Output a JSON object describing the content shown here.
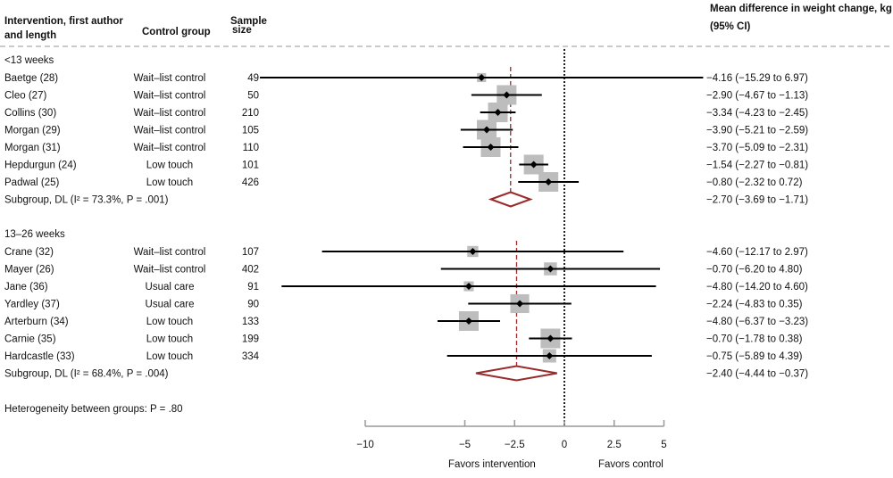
{
  "headers": {
    "study_line1": "Intervention, first author",
    "study_line2": "and length",
    "control": "Control group",
    "sample_line1": "Sample",
    "sample_line2": "size",
    "effect_line1": "Mean difference in weight change, kg",
    "effect_line2": "(95% CI)"
  },
  "chart_data": {
    "type": "forest",
    "xlim": [
      -10,
      5
    ],
    "xticks": [
      "-10",
      "-5",
      "-2.5",
      "0",
      "2.5",
      "5"
    ],
    "xtick_values": [
      -10,
      -5,
      -2.5,
      0,
      2.5,
      5
    ],
    "xlabel_left": "Favors intervention",
    "xlabel_right": "Favors control",
    "colors": {
      "summary": "#9b2a2a",
      "box": "#bdbdbd",
      "line": "#000000"
    },
    "groups": [
      {
        "label": "<13 weeks",
        "studies": [
          {
            "name": "Baetge (28)",
            "control": "Wait–list control",
            "n": "49",
            "mean": -4.16,
            "lo": -15.29,
            "hi": 6.97,
            "ci_text": "−4.16 (−15.29 to 6.97)"
          },
          {
            "name": "Cleo (27)",
            "control": "Wait–list control",
            "n": "50",
            "mean": -2.9,
            "lo": -4.67,
            "hi": -1.13,
            "ci_text": "−2.90 (−4.67 to −1.13)"
          },
          {
            "name": "Collins (30)",
            "control": "Wait–list control",
            "n": "210",
            "mean": -3.34,
            "lo": -4.23,
            "hi": -2.45,
            "ci_text": "−3.34 (−4.23 to −2.45)"
          },
          {
            "name": "Morgan (29)",
            "control": "Wait–list control",
            "n": "105",
            "mean": -3.9,
            "lo": -5.21,
            "hi": -2.59,
            "ci_text": "−3.90 (−5.21 to −2.59)"
          },
          {
            "name": "Morgan (31)",
            "control": "Wait–list control",
            "n": "110",
            "mean": -3.7,
            "lo": -5.09,
            "hi": -2.31,
            "ci_text": "−3.70 (−5.09 to −2.31)"
          },
          {
            "name": "Hepdurgun (24)",
            "control": "Low touch",
            "n": "101",
            "mean": -1.54,
            "lo": -2.27,
            "hi": -0.81,
            "ci_text": "−1.54 (−2.27 to −0.81)"
          },
          {
            "name": "Padwal (25)",
            "control": "Low touch",
            "n": "426",
            "mean": -0.8,
            "lo": -2.32,
            "hi": 0.72,
            "ci_text": "−0.80 (−2.32 to 0.72)"
          }
        ],
        "summary": {
          "label": "Subgroup, DL (I² = 73.3%, P = .001)",
          "mean": -2.7,
          "lo": -3.69,
          "hi": -1.71,
          "ci_text": "−2.70 (−3.69 to −1.71)"
        }
      },
      {
        "label": "13–26 weeks",
        "studies": [
          {
            "name": "Crane (32)",
            "control": "Wait–list control",
            "n": "107",
            "mean": -4.6,
            "lo": -12.17,
            "hi": 2.97,
            "ci_text": "−4.60 (−12.17 to 2.97)"
          },
          {
            "name": "Mayer (26)",
            "control": "Wait–list control",
            "n": "402",
            "mean": -0.7,
            "lo": -6.2,
            "hi": 4.8,
            "ci_text": "−0.70 (−6.20 to 4.80)"
          },
          {
            "name": "Jane (36)",
            "control": "Usual care",
            "n": "91",
            "mean": -4.8,
            "lo": -14.2,
            "hi": 4.6,
            "ci_text": "−4.80 (−14.20 to 4.60)"
          },
          {
            "name": "Yardley (37)",
            "control": "Usual care",
            "n": "90",
            "mean": -2.24,
            "lo": -4.83,
            "hi": 0.35,
            "ci_text": "−2.24 (−4.83 to 0.35)"
          },
          {
            "name": "Arterburn (34)",
            "control": "Low touch",
            "n": "133",
            "mean": -4.8,
            "lo": -6.37,
            "hi": -3.23,
            "ci_text": "−4.80 (−6.37 to −3.23)"
          },
          {
            "name": "Carnie (35)",
            "control": "Low touch",
            "n": "199",
            "mean": -0.7,
            "lo": -1.78,
            "hi": 0.38,
            "ci_text": "−0.70 (−1.78 to 0.38)"
          },
          {
            "name": "Hardcastle (33)",
            "control": "Low touch",
            "n": "334",
            "mean": -0.75,
            "lo": -5.89,
            "hi": 4.39,
            "ci_text": "−0.75 (−5.89 to 4.39)"
          }
        ],
        "summary": {
          "label": "Subgroup, DL (I² = 68.4%, P = .004)",
          "mean": -2.4,
          "lo": -4.44,
          "hi": -0.37,
          "ci_text": "−2.40 (−4.44 to −0.37)"
        }
      }
    ],
    "heterogeneity": "Heterogeneity between groups: P = .80"
  }
}
